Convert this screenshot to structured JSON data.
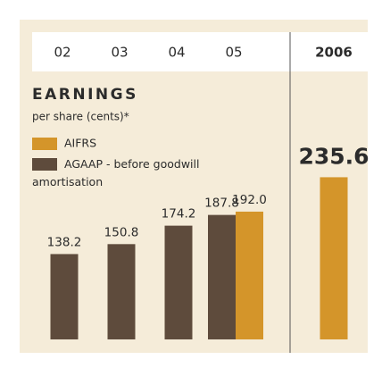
{
  "chart_data": {
    "type": "bar",
    "title": "EARNINGS",
    "subtitle": "per share (cents)*",
    "categories": [
      "02",
      "03",
      "04",
      "05",
      "2006"
    ],
    "series": [
      {
        "name": "AIFRS",
        "color": "#d4952a",
        "values": [
          null,
          null,
          null,
          192.0,
          235.6
        ],
        "value_labels": [
          null,
          null,
          null,
          "192.0",
          "235.6"
        ]
      },
      {
        "name": "AGAAP - before goodwill amortisation",
        "color": "#5e4b3c",
        "values": [
          138.2,
          150.8,
          174.2,
          187.8,
          null
        ]
      }
    ],
    "ylim": [
      30,
      250
    ]
  }
}
